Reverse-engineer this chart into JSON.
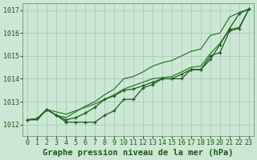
{
  "x": [
    0,
    1,
    2,
    3,
    4,
    5,
    6,
    7,
    8,
    9,
    10,
    11,
    12,
    13,
    14,
    15,
    16,
    17,
    18,
    19,
    20,
    21,
    22,
    23
  ],
  "line_straight": [
    1012.2,
    1012.25,
    1012.65,
    1012.55,
    1012.45,
    1012.6,
    1012.75,
    1012.9,
    1013.1,
    1013.3,
    1013.55,
    1013.7,
    1013.85,
    1014.0,
    1014.05,
    1014.1,
    1014.3,
    1014.5,
    1014.55,
    1015.1,
    1015.55,
    1016.15,
    1016.25,
    1017.05
  ],
  "line_dip": [
    1012.2,
    1012.25,
    1012.65,
    1012.4,
    1012.1,
    1012.1,
    1012.1,
    1012.1,
    1012.4,
    1012.6,
    1013.1,
    1013.1,
    1013.6,
    1013.75,
    1014.0,
    1014.0,
    1014.0,
    1014.4,
    1014.4,
    1014.85,
    1015.5,
    1016.2,
    1016.85,
    1017.05
  ],
  "line_mid": [
    1012.2,
    1012.25,
    1012.65,
    1012.4,
    1012.2,
    1012.3,
    1012.5,
    1012.75,
    1013.1,
    1013.25,
    1013.5,
    1013.55,
    1013.7,
    1013.85,
    1014.0,
    1014.0,
    1014.2,
    1014.4,
    1014.4,
    1015.0,
    1015.15,
    1016.1,
    1016.2,
    1017.05
  ],
  "line_top": [
    1012.2,
    1012.2,
    1012.65,
    1012.4,
    1012.3,
    1012.55,
    1012.8,
    1013.0,
    1013.3,
    1013.55,
    1014.0,
    1014.1,
    1014.3,
    1014.55,
    1014.7,
    1014.8,
    1015.0,
    1015.2,
    1015.3,
    1015.9,
    1016.0,
    1016.7,
    1016.9,
    1017.05
  ],
  "bg_color": "#cce8d4",
  "grid_color": "#aaccbb",
  "line_color_dark": "#1a5c1a",
  "line_color_light": "#2d7a2d",
  "ylim": [
    1011.5,
    1017.3
  ],
  "yticks": [
    1012,
    1013,
    1014,
    1015,
    1016,
    1017
  ],
  "xticks": [
    0,
    1,
    2,
    3,
    4,
    5,
    6,
    7,
    8,
    9,
    10,
    11,
    12,
    13,
    14,
    15,
    16,
    17,
    18,
    19,
    20,
    21,
    22,
    23
  ],
  "xlabel": "Graphe pression niveau de la mer (hPa)",
  "xlabel_fontsize": 7.5,
  "tick_fontsize": 6.0
}
